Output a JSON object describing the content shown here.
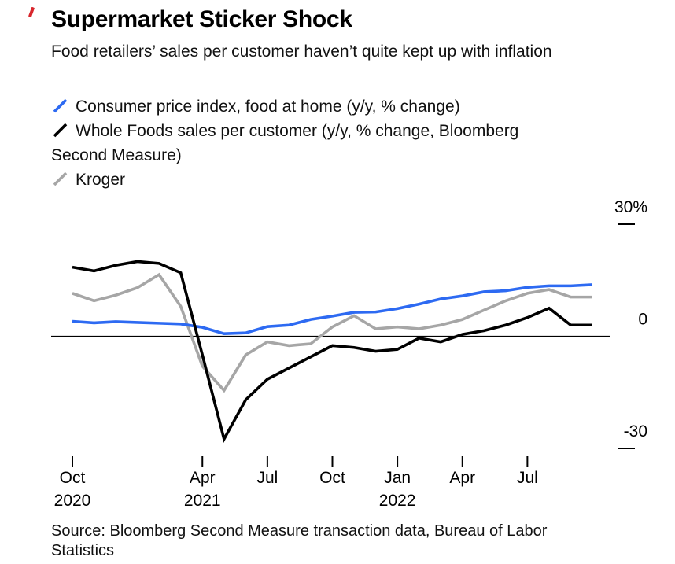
{
  "colors": {
    "accent_red": "#d8262c",
    "cpi_blue": "#2d6af2",
    "whole_foods_black": "#000000",
    "kroger_gray": "#a6a6a6"
  },
  "header": {
    "title": "Supermarket Sticker Shock",
    "subtitle": "Food retailers’ sales per customer haven’t quite kept up with inflation"
  },
  "legend": [
    {
      "label": "Consumer price index, food at home (y/y, % change)",
      "color": "#2d6af2"
    },
    {
      "label": "Whole Foods sales per customer (y/y, % change, Bloomberg Second Measure)",
      "color": "#000000"
    },
    {
      "label": "Kroger",
      "color": "#a6a6a6"
    }
  ],
  "chart_data": {
    "type": "line",
    "title": "Supermarket Sticker Shock",
    "x": [
      "Oct 2020",
      "Nov 2020",
      "Dec 2020",
      "Jan 2021",
      "Feb 2021",
      "Mar 2021",
      "Apr 2021",
      "May 2021",
      "Jun 2021",
      "Jul 2021",
      "Aug 2021",
      "Sep 2021",
      "Oct 2021",
      "Nov 2021",
      "Dec 2021",
      "Jan 2022",
      "Feb 2022",
      "Mar 2022",
      "Apr 2022",
      "May 2022",
      "Jun 2022",
      "Jul 2022",
      "Aug 2022",
      "Sep 2022",
      "Oct 2022"
    ],
    "series": [
      {
        "id": "cpi-food-at-home",
        "name": "Consumer price index, food at home (y/y, % change)",
        "color": "#2d6af2",
        "values": [
          4,
          3.6,
          3.9,
          3.7,
          3.5,
          3.3,
          2.4,
          0.7,
          0.9,
          2.6,
          3,
          4.5,
          5.4,
          6.4,
          6.5,
          7.4,
          8.6,
          10,
          10.8,
          11.9,
          12.2,
          13.1,
          13.5,
          13.5,
          13.8
        ]
      },
      {
        "id": "whole-foods",
        "name": "Whole Foods sales per customer (y/y, % change, Bloomberg Second Measure)",
        "color": "#000000",
        "values": [
          18.5,
          17.5,
          19,
          20,
          19.5,
          17,
          -5,
          -27.5,
          -17,
          -11.5,
          -8.5,
          -5.5,
          -2.5,
          -3,
          -4,
          -3.5,
          -0.5,
          -1.5,
          0.5,
          1.5,
          3,
          5,
          7.5,
          3,
          3
        ]
      },
      {
        "id": "kroger",
        "name": "Kroger",
        "color": "#a6a6a6",
        "values": [
          11.5,
          9.5,
          11,
          13,
          16.5,
          8,
          -8,
          -14.5,
          -5,
          -1.5,
          -2.5,
          -2,
          2.5,
          5.5,
          2,
          2.5,
          2,
          3,
          4.5,
          7,
          9.5,
          11.5,
          12.5,
          10.5,
          10.5
        ]
      }
    ],
    "ylim": [
      -30,
      30
    ],
    "yticks": [
      {
        "value": 30,
        "label": "30%"
      },
      {
        "value": 0,
        "label": "0"
      },
      {
        "value": -30,
        "label": "-30"
      }
    ],
    "xticks": [
      {
        "index": 0,
        "label": "Oct",
        "year": "2020"
      },
      {
        "index": 6,
        "label": "Apr",
        "year": "2021"
      },
      {
        "index": 9,
        "label": "Jul"
      },
      {
        "index": 12,
        "label": "Oct"
      },
      {
        "index": 15,
        "label": "Jan",
        "year": "2022"
      },
      {
        "index": 18,
        "label": "Apr"
      },
      {
        "index": 21,
        "label": "Jul"
      }
    ],
    "grid": false,
    "legend_position": "top-left"
  },
  "footer": {
    "source": "Source: Bloomberg Second Measure transaction data, Bureau of Labor Statistics"
  }
}
